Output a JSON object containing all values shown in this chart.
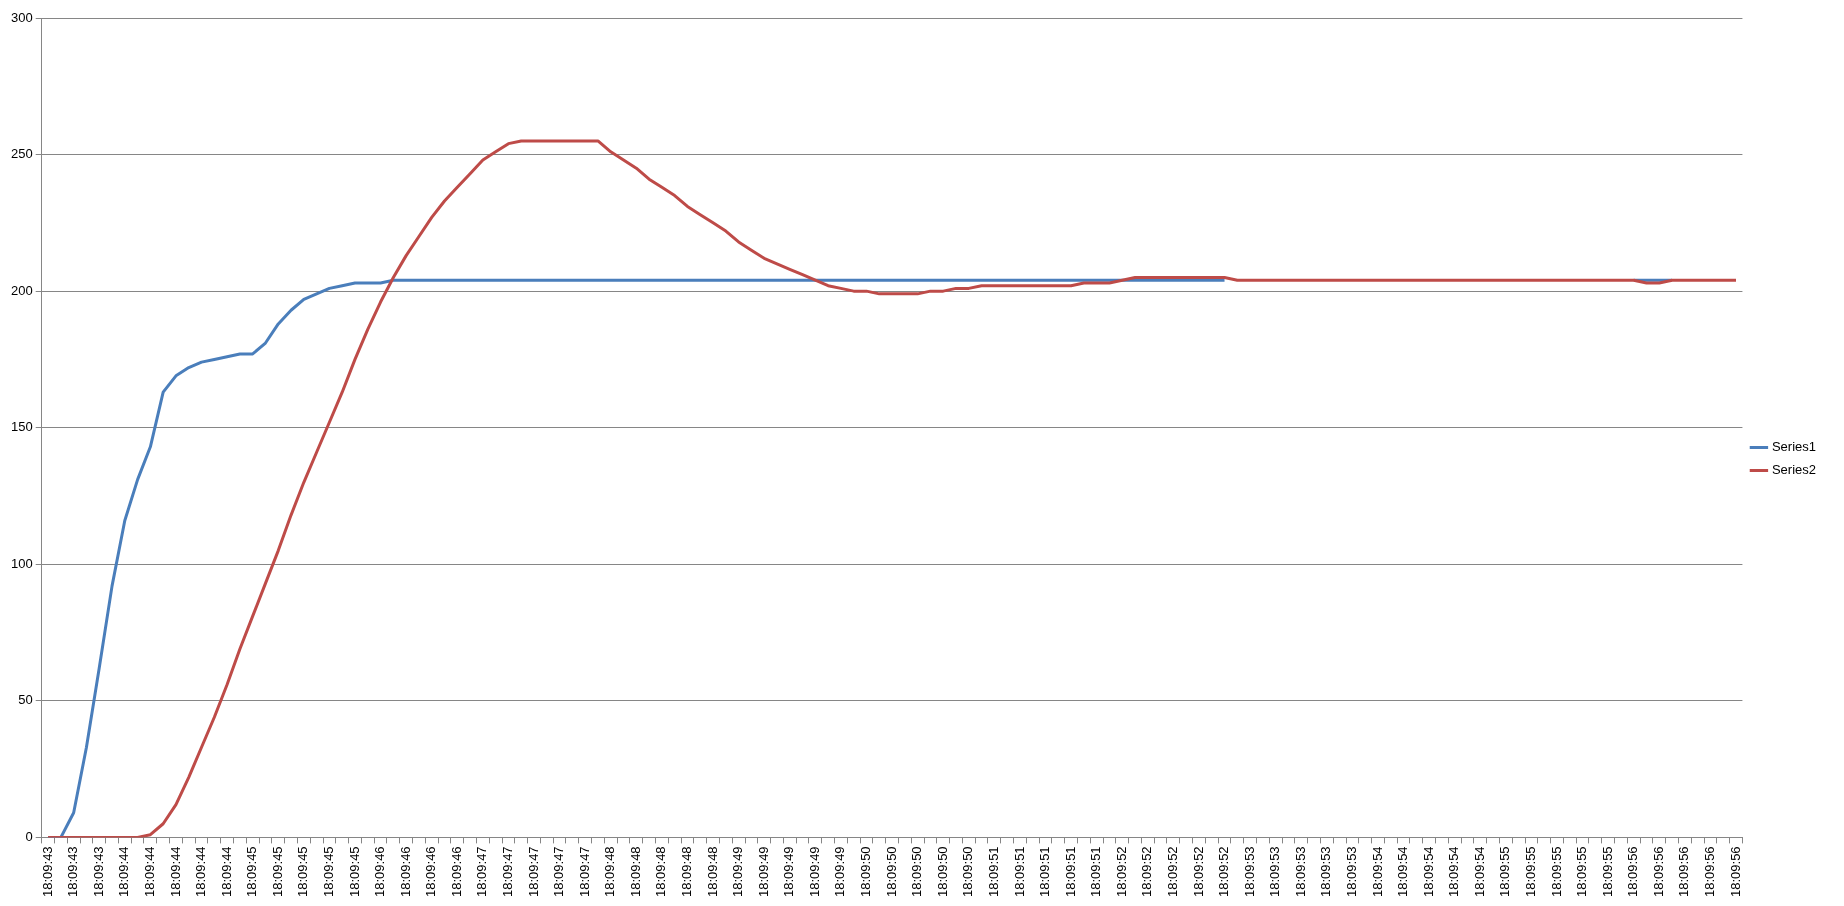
{
  "chart_data": {
    "type": "line",
    "categories": [
      "18:09:43",
      null,
      "18:09:43",
      null,
      "18:09:43",
      null,
      "18:09:44",
      null,
      "18:09:44",
      null,
      "18:09:44",
      null,
      "18:09:44",
      null,
      "18:09:44",
      null,
      "18:09:45",
      null,
      "18:09:45",
      null,
      "18:09:45",
      null,
      "18:09:45",
      null,
      "18:09:45",
      null,
      "18:09:46",
      null,
      "18:09:46",
      null,
      "18:09:46",
      null,
      "18:09:46",
      null,
      "18:09:47",
      null,
      "18:09:47",
      null,
      "18:09:47",
      null,
      "18:09:47",
      null,
      "18:09:47",
      null,
      "18:09:48",
      null,
      "18:09:48",
      null,
      "18:09:48",
      null,
      "18:09:48",
      null,
      "18:09:48",
      null,
      "18:09:49",
      null,
      "18:09:49",
      null,
      "18:09:49",
      null,
      "18:09:49",
      null,
      "18:09:49",
      null,
      "18:09:50",
      null,
      "18:09:50",
      null,
      "18:09:50",
      null,
      "18:09:50",
      null,
      "18:09:50",
      null,
      "18:09:51",
      null,
      "18:09:51",
      null,
      "18:09:51",
      null,
      "18:09:51",
      null,
      "18:09:51",
      null,
      "18:09:52",
      null,
      "18:09:52",
      null,
      "18:09:52",
      null,
      "18:09:52",
      null,
      "18:09:52",
      null,
      "18:09:53",
      null,
      "18:09:53",
      null,
      "18:09:53",
      null,
      "18:09:53",
      null,
      "18:09:53",
      null,
      "18:09:54",
      null,
      "18:09:54",
      null,
      "18:09:54",
      null,
      "18:09:54",
      null,
      "18:09:54",
      null,
      "18:09:55",
      null,
      "18:09:55",
      null,
      "18:09:55",
      null,
      "18:09:55",
      null,
      "18:09:55",
      null,
      "18:09:56",
      null,
      "18:09:56",
      null,
      "18:09:56",
      null,
      "18:09:56",
      null,
      "18:09:56"
    ],
    "series": [
      {
        "name": "Series1",
        "color": "#4a7ebb",
        "values": [
          0,
          0,
          9,
          33,
          62,
          92,
          116,
          131,
          143,
          163,
          169,
          172,
          174,
          175,
          176,
          177,
          177,
          181,
          188,
          193,
          197,
          199,
          201,
          202,
          203,
          203,
          203,
          204,
          204,
          204,
          204,
          204,
          204,
          204,
          204,
          204,
          204,
          204,
          204,
          204,
          204,
          204,
          204,
          204,
          204,
          204,
          204,
          204,
          204,
          204,
          204,
          204,
          204,
          204,
          204,
          204,
          204,
          204,
          204,
          204,
          204,
          204,
          204,
          204,
          204,
          204,
          204,
          204,
          204,
          204,
          204,
          204,
          204,
          204,
          204,
          204,
          204,
          204,
          204,
          204,
          204,
          204,
          204,
          204,
          204,
          204,
          204,
          204,
          204,
          204,
          204,
          204,
          204,
          null,
          null,
          null,
          null,
          null,
          null,
          null,
          null,
          null,
          null,
          null,
          null,
          null,
          null,
          null,
          null,
          null,
          null,
          null,
          null,
          null,
          null,
          null,
          null,
          null,
          null,
          null,
          null,
          null,
          null,
          null,
          204,
          204,
          204,
          204,
          null,
          null,
          null,
          null,
          null
        ]
      },
      {
        "name": "Series2",
        "color": "#be4b48",
        "values": [
          0,
          0,
          0,
          0,
          0,
          0,
          0,
          0,
          1,
          5,
          12,
          22,
          33,
          44,
          56,
          69,
          81,
          93,
          105,
          118,
          130,
          141,
          152,
          163,
          175,
          186,
          196,
          205,
          213,
          220,
          227,
          233,
          238,
          243,
          248,
          251,
          254,
          255,
          255,
          255,
          255,
          255,
          255,
          255,
          251,
          248,
          245,
          241,
          238,
          235,
          231,
          228,
          225,
          222,
          218,
          215,
          212,
          210,
          208,
          206,
          204,
          202,
          201,
          200,
          200,
          199,
          199,
          199,
          199,
          200,
          200,
          201,
          201,
          202,
          202,
          202,
          202,
          202,
          202,
          202,
          202,
          203,
          203,
          203,
          204,
          205,
          205,
          205,
          205,
          205,
          205,
          205,
          205,
          204,
          204,
          204,
          204,
          204,
          204,
          204,
          204,
          204,
          204,
          204,
          204,
          204,
          204,
          204,
          204,
          204,
          204,
          204,
          204,
          204,
          204,
          204,
          204,
          204,
          204,
          204,
          204,
          204,
          204,
          204,
          204,
          203,
          203,
          204,
          204,
          204,
          204,
          204,
          204
        ]
      }
    ],
    "ylim": [
      0,
      300
    ],
    "yticks": [
      0,
      50,
      100,
      150,
      200,
      250,
      300
    ],
    "grid": "y",
    "legend": "right"
  }
}
